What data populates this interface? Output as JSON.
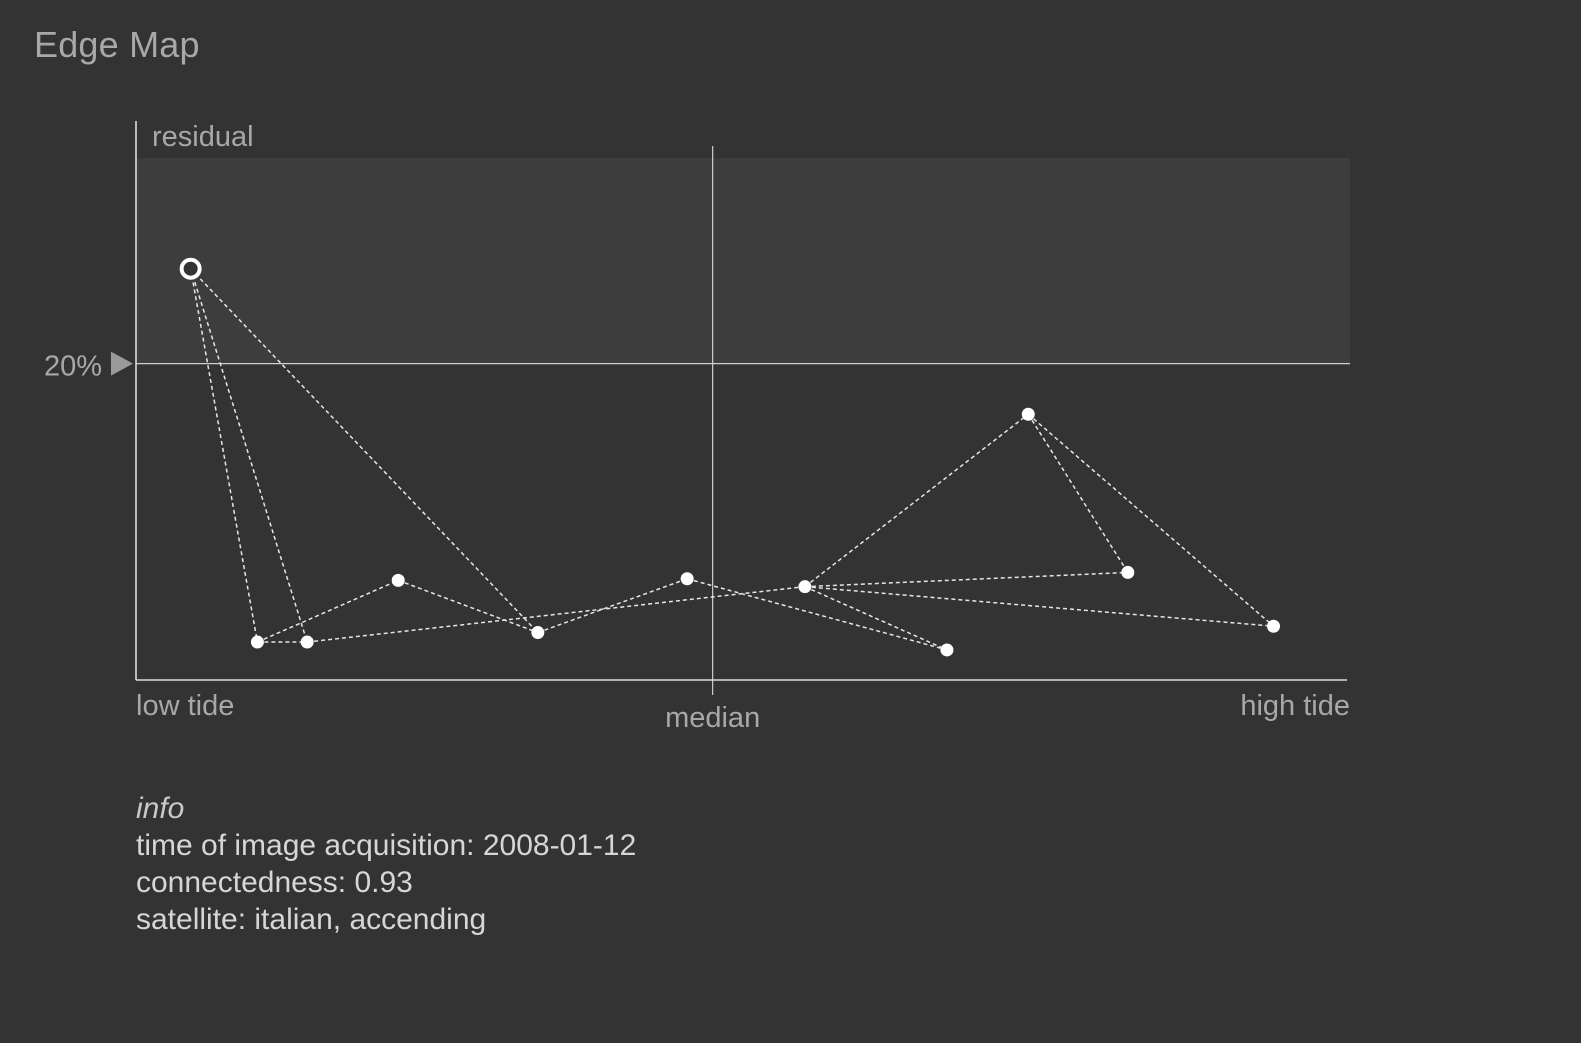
{
  "title": "Edge Map",
  "chart_data": {
    "type": "scatter",
    "ylabel": "residual",
    "x_labels": {
      "min": "low tide",
      "mid": "median",
      "max": "high tide"
    },
    "xlim": [
      0,
      1
    ],
    "ylim": [
      0,
      0.33
    ],
    "threshold": {
      "value": 0.2,
      "label": "20%"
    },
    "median_x": 0.475,
    "points": [
      {
        "id": "p0",
        "x": 0.045,
        "y": 0.26,
        "highlighted": true
      },
      {
        "id": "p1",
        "x": 0.1,
        "y": 0.024
      },
      {
        "id": "p2",
        "x": 0.141,
        "y": 0.024
      },
      {
        "id": "p3",
        "x": 0.216,
        "y": 0.063
      },
      {
        "id": "p4",
        "x": 0.331,
        "y": 0.03
      },
      {
        "id": "p5",
        "x": 0.454,
        "y": 0.064
      },
      {
        "id": "p6",
        "x": 0.551,
        "y": 0.059
      },
      {
        "id": "p7",
        "x": 0.668,
        "y": 0.019
      },
      {
        "id": "p8",
        "x": 0.735,
        "y": 0.168
      },
      {
        "id": "p9",
        "x": 0.817,
        "y": 0.068
      },
      {
        "id": "p10",
        "x": 0.937,
        "y": 0.034
      }
    ],
    "edges": [
      [
        "p0",
        "p1"
      ],
      [
        "p0",
        "p2"
      ],
      [
        "p0",
        "p4"
      ],
      [
        "p1",
        "p2"
      ],
      [
        "p1",
        "p3"
      ],
      [
        "p3",
        "p4"
      ],
      [
        "p4",
        "p5"
      ],
      [
        "p2",
        "p6"
      ],
      [
        "p5",
        "p7"
      ],
      [
        "p6",
        "p7"
      ],
      [
        "p6",
        "p8"
      ],
      [
        "p6",
        "p9"
      ],
      [
        "p6",
        "p10"
      ],
      [
        "p8",
        "p9"
      ],
      [
        "p8",
        "p10"
      ]
    ],
    "colors": {
      "background": "#333333",
      "band": "#3d3d3d",
      "axis": "#dcdcdc",
      "edge": "#e6e6e6",
      "point": "#ffffff",
      "label": "#a8a8a8",
      "marker": "#9a9a9a"
    }
  },
  "info": {
    "heading": "info",
    "lines": [
      "time of image acquisition: 2008-01-12",
      "connectedness: 0.93",
      "satellite: italian, accending"
    ]
  }
}
